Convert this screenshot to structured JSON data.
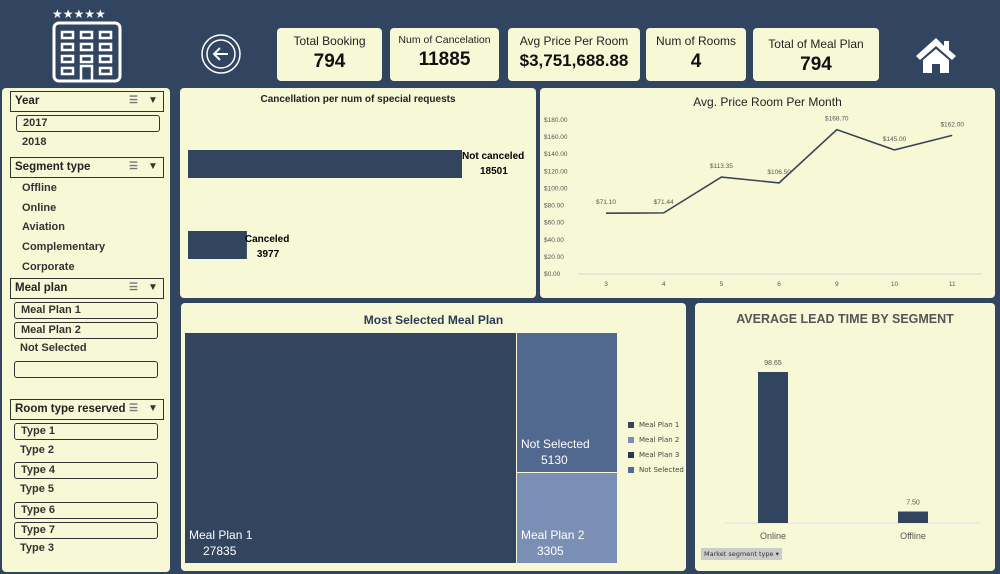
{
  "header": {
    "kpis": [
      {
        "label": "Total Booking",
        "value": "794"
      },
      {
        "label": "Num of Cancelation",
        "value": "11885"
      },
      {
        "label": "Avg Price Per Room",
        "value": "$3,751,688.88"
      },
      {
        "label": "Num of Rooms",
        "value": "4"
      },
      {
        "label": "Total of Meal Plan",
        "value": "794"
      }
    ],
    "icons": [
      "hotel-icon",
      "back-arrow-icon",
      "home-icon"
    ]
  },
  "slicers": [
    {
      "title": "Year",
      "items": [
        {
          "label": "2017",
          "selected": true
        },
        {
          "label": "2018",
          "selected": false
        }
      ]
    },
    {
      "title": "Segment type",
      "items": [
        {
          "label": "Offline",
          "selected": false
        },
        {
          "label": "Online",
          "selected": false
        },
        {
          "label": "Aviation",
          "selected": false
        },
        {
          "label": "Complementary",
          "selected": false
        },
        {
          "label": "Corporate",
          "selected": false
        }
      ]
    },
    {
      "title": "Meal plan",
      "items": [
        {
          "label": "Meal Plan 1",
          "selected": true
        },
        {
          "label": "Meal Plan 2",
          "selected": true
        },
        {
          "label": "Not Selected",
          "selected": false
        },
        {
          "label": "",
          "selected": true
        }
      ]
    },
    {
      "title": "Room type reserved",
      "items": [
        {
          "label": "Type 1",
          "selected": true
        },
        {
          "label": "Type 2",
          "selected": false
        },
        {
          "label": "Type 4",
          "selected": true
        },
        {
          "label": "Type 5",
          "selected": false
        },
        {
          "label": "Type 6",
          "selected": true
        },
        {
          "label": "Type 7",
          "selected": true
        },
        {
          "label": "Type 3",
          "selected": false
        }
      ]
    }
  ],
  "colors": {
    "background": "#324560",
    "panel": "#f7f9d6",
    "bar": "#33445f",
    "plan2": "#7b8fb5",
    "not_selected": "#51688f"
  },
  "chart_data": [
    {
      "type": "bar",
      "orientation": "horizontal",
      "title": "Cancellation per num of special requests",
      "categories": [
        "Not canceled",
        "Canceled"
      ],
      "values": [
        18501,
        3977
      ]
    },
    {
      "type": "line",
      "title": "Avg. Price Room Per Month",
      "categories": [
        "3",
        "4",
        "5",
        "6",
        "9",
        "10",
        "11"
      ],
      "values": [
        71.1,
        71.44,
        113.35,
        106.5,
        168.7,
        145.0,
        162.0
      ],
      "data_labels": [
        "$71.10",
        "$71.44",
        "$113.35",
        "$106.50",
        "$168.70",
        "$145.00",
        "$162.00"
      ],
      "ylim": [
        0,
        180
      ],
      "yticks": [
        "$0.00",
        "$20.00",
        "$40.00",
        "$60.00",
        "$80.00",
        "$100.00",
        "$120.00",
        "$140.00",
        "$160.00",
        "$180.00"
      ]
    },
    {
      "type": "treemap",
      "title": "Most Selected Meal Plan",
      "categories": [
        "Meal Plan 1",
        "Not Selected",
        "Meal Plan 2"
      ],
      "values": [
        27835,
        5130,
        3305
      ],
      "legend": [
        "Meal Plan 1",
        "Meal Plan 2",
        "Meal Plan 3",
        "Not Selected"
      ],
      "legend_position": "right"
    },
    {
      "type": "bar",
      "title": "AVERAGE LEAD TIME BY SEGMENT",
      "categories": [
        "Online",
        "Offline"
      ],
      "values": [
        98.65,
        7.5
      ],
      "data_labels": [
        "98.65",
        "7.50"
      ],
      "filter_button": "Market segment type"
    }
  ]
}
